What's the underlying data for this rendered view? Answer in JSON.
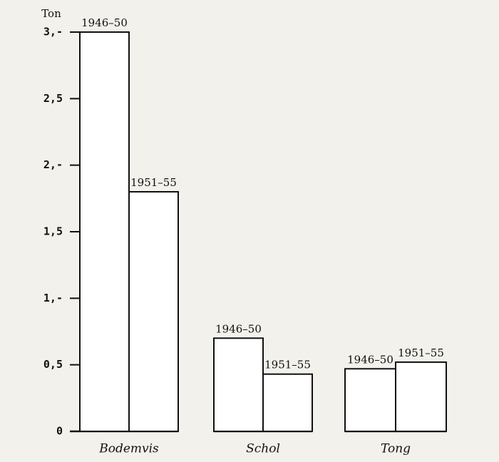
{
  "chart_data": {
    "type": "bar",
    "y_label": "Ton",
    "categories": [
      "Bodemvis",
      "Schol",
      "Tong"
    ],
    "series": [
      {
        "name": "1946–50",
        "color": "#ffffff",
        "values": [
          3.0,
          0.7,
          0.47
        ]
      },
      {
        "name": "1951–55",
        "color": "#ffffff",
        "values": [
          1.8,
          0.43,
          0.52
        ]
      }
    ],
    "ylim": [
      0,
      3
    ],
    "yticks": [
      0,
      {
        "value": 0.5,
        "label": "0,5"
      },
      {
        "value": 1,
        "label": "1,-"
      },
      {
        "value": 1.5,
        "label": "1,5"
      },
      {
        "value": 2,
        "label": "2,-"
      },
      {
        "value": 2.5,
        "label": "2,5"
      },
      {
        "value": 3,
        "label": "3,-"
      }
    ]
  }
}
